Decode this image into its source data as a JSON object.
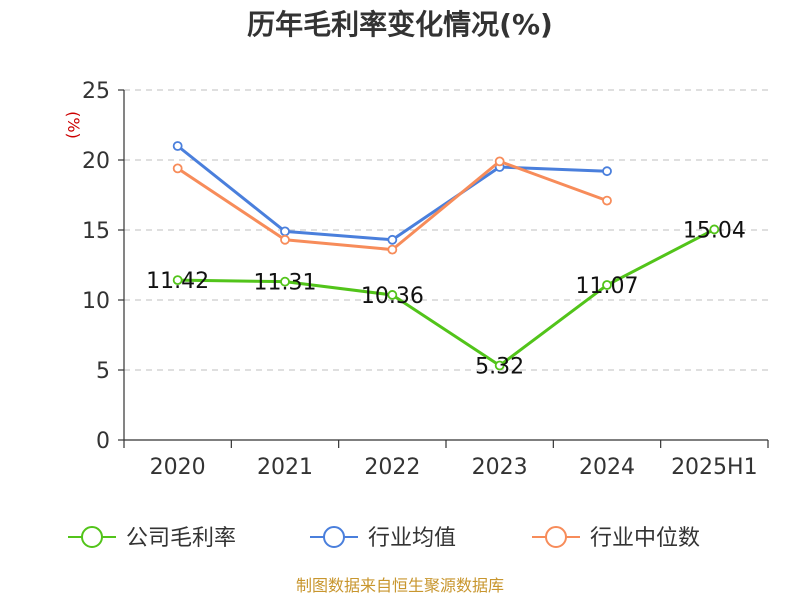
{
  "chart_data": {
    "type": "line",
    "title": "历年毛利率变化情况(%)",
    "ylabel": "(%)",
    "xlabel": "",
    "categories": [
      "2020",
      "2021",
      "2022",
      "2023",
      "2024",
      "2025H1"
    ],
    "ylim": [
      0,
      25
    ],
    "yticks": [
      0,
      5,
      10,
      15,
      20,
      25
    ],
    "grid": true,
    "legend_position": "bottom",
    "series": [
      {
        "name": "公司毛利率",
        "color": "#52c41a",
        "values": [
          11.42,
          11.31,
          10.36,
          5.32,
          11.07,
          15.04
        ],
        "labels": [
          "11.42",
          "11.31",
          "10.36",
          "5.32",
          "11.07",
          "15.04"
        ]
      },
      {
        "name": "行业均值",
        "color": "#4a7fdc",
        "values": [
          21.0,
          14.9,
          14.3,
          19.5,
          19.2,
          null
        ]
      },
      {
        "name": "行业中位数",
        "color": "#f78c5a",
        "values": [
          19.4,
          14.3,
          13.6,
          19.9,
          17.1,
          null
        ]
      }
    ]
  },
  "source_note": "制图数据来自恒生聚源数据库"
}
